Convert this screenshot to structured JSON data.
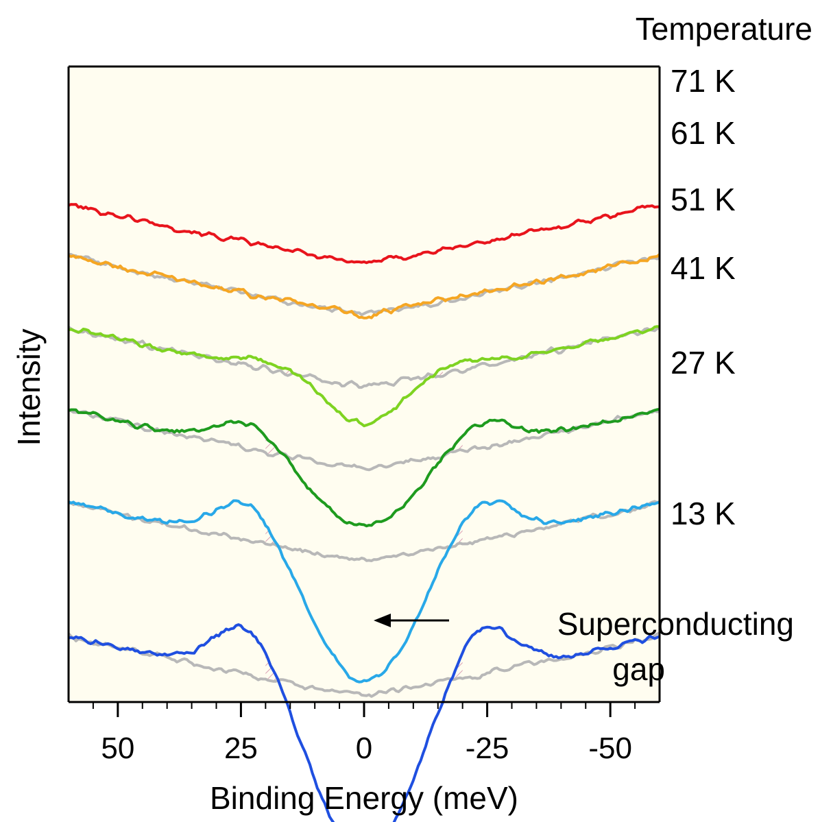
{
  "chart_data": {
    "type": "line",
    "title": "",
    "xlabel": "Binding Energy (meV)",
    "ylabel": "Intensity",
    "xlim": [
      60,
      -60
    ],
    "x_reversed": true,
    "xticks": [
      50,
      25,
      0,
      -25,
      -50
    ],
    "xtick_labels": [
      "50",
      "25",
      "0",
      "-25",
      "-50"
    ],
    "legend_title": "Temperature",
    "normal_state_reference_color": "#b8b8b8",
    "gap_fill_color": "#d9a0b4",
    "background_color": "#fffdf0",
    "series": [
      {
        "name": "71 K",
        "temperature_K": 71,
        "color": "#e8141c",
        "offset": 6.3,
        "gap_width": 0,
        "gap_depth": 0,
        "peak_height": 0,
        "has_reference": false
      },
      {
        "name": "61 K",
        "temperature_K": 61,
        "color": "#f5a623",
        "offset": 5.55,
        "gap_width": 3,
        "gap_depth": 0.05,
        "peak_height": 0.02,
        "has_reference": true
      },
      {
        "name": "51 K",
        "temperature_K": 51,
        "color": "#7ed321",
        "offset": 4.5,
        "gap_width": 10,
        "gap_depth": 0.55,
        "peak_height": 0.12,
        "has_reference": true
      },
      {
        "name": "41 K",
        "temperature_K": 41,
        "color": "#1e9b1e",
        "offset": 3.3,
        "gap_width": 14,
        "gap_depth": 0.85,
        "peak_height": 0.4,
        "has_reference": true
      },
      {
        "name": "27 K",
        "temperature_K": 27,
        "color": "#28a8e8",
        "offset": 1.95,
        "gap_width": 14,
        "gap_depth": 1.75,
        "peak_height": 0.6,
        "has_reference": true
      },
      {
        "name": "13 K",
        "temperature_K": 13,
        "color": "#1f4fe0",
        "offset": 0.0,
        "gap_width": 14,
        "gap_depth": 2.3,
        "peak_height": 0.75,
        "has_reference": true
      }
    ]
  },
  "annotation": {
    "line1": "Superconducting",
    "line2": "gap"
  }
}
